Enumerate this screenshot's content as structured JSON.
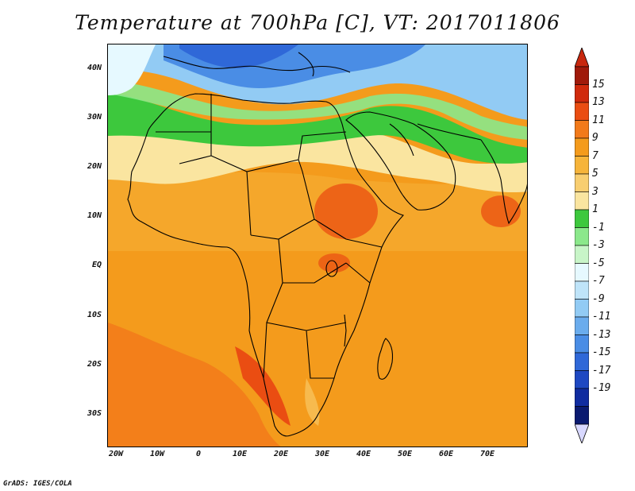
{
  "title": "Temperature at 700hPa [C], VT: 2017011806",
  "footer": "GrADS: IGES/COLA",
  "map": {
    "region": "Africa and Arabian Peninsula",
    "lat_labels": [
      "40N",
      "30N",
      "20N",
      "10N",
      "EQ",
      "10S",
      "20S",
      "30S"
    ],
    "lon_labels": [
      "20W",
      "10W",
      "0",
      "10E",
      "20E",
      "30E",
      "40E",
      "50E",
      "60E",
      "70E"
    ]
  },
  "colorbar": {
    "labels": [
      "15",
      "13",
      "11",
      "9",
      "7",
      "5",
      "3",
      "1",
      "-1",
      "-3",
      "-5",
      "-7",
      "-9",
      "-11",
      "-13",
      "-15",
      "-17",
      "-19"
    ],
    "colors": [
      "#a01a0a",
      "#d02a0c",
      "#ea4d12",
      "#f27a1a",
      "#f49b1c",
      "#f6b43a",
      "#f8ce70",
      "#fae5a0",
      "#3dc83d",
      "#8be88b",
      "#c8f5c8",
      "#e6f9ff",
      "#bfe4f9",
      "#92cbf4",
      "#6aaced",
      "#4a8de5",
      "#2f68d8",
      "#1e48c2",
      "#102ca0",
      "#0a1a70"
    ],
    "top_arrow_color": "#c8280e",
    "bottom_arrow_color": "#d8d8ff"
  }
}
